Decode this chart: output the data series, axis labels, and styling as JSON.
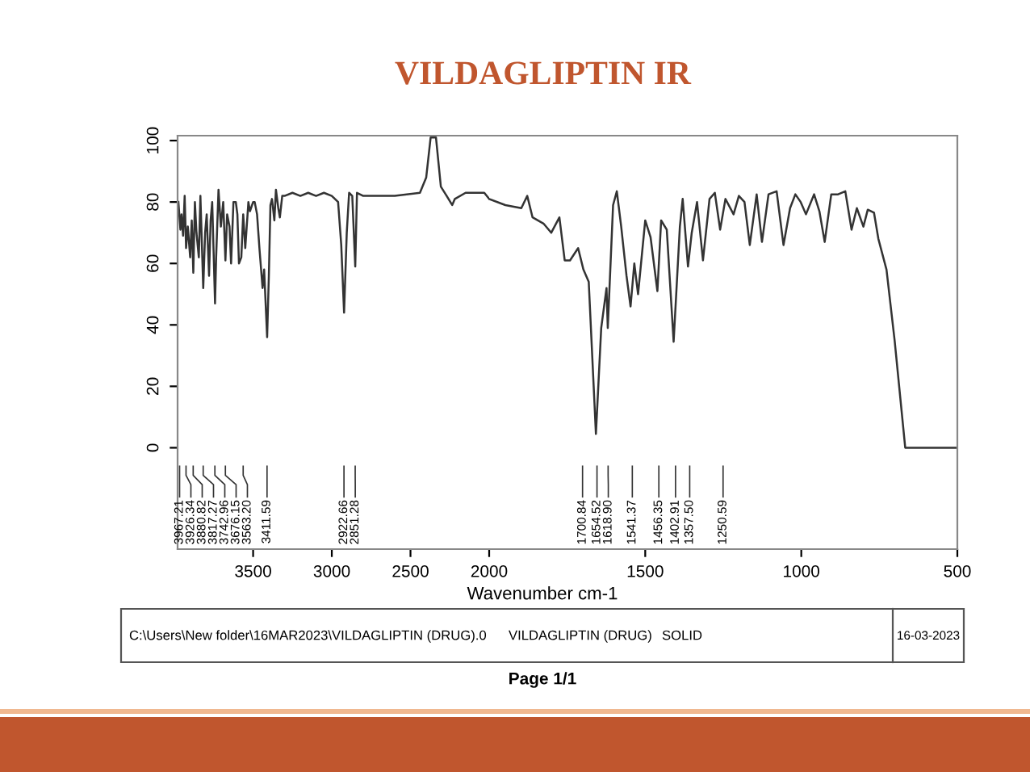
{
  "chart_data": [
    {
      "type": "line",
      "title": "VILDAGLIPTIN IR",
      "x": [
        3975,
        3962,
        3955,
        3945,
        3935,
        3926,
        3915,
        3900,
        3890,
        3880,
        3870,
        3860,
        3845,
        3835,
        3817,
        3805,
        3795,
        3780,
        3770,
        3760,
        3742,
        3735,
        3720,
        3705,
        3690,
        3676,
        3665,
        3650,
        3640,
        3625,
        3610,
        3600,
        3590,
        3575,
        3563,
        3550,
        3530,
        3520,
        3500,
        3490,
        3475,
        3460,
        3440,
        3430,
        3411,
        3400,
        3390,
        3380,
        3365,
        3355,
        3340,
        3330,
        3315,
        3300,
        3250,
        3200,
        3150,
        3100,
        3050,
        3000,
        2960,
        2940,
        2922,
        2905,
        2890,
        2870,
        2851,
        2840,
        2800,
        2700,
        2600,
        2440,
        2400,
        2372,
        2338,
        2307,
        2270,
        2235,
        2218,
        2150,
        2031,
        2000
      ],
      "series": [
        {
          "color": "#333333",
          "values": [
            80,
            71,
            76,
            69,
            82,
            65,
            72,
            62,
            74,
            57,
            80,
            70,
            62,
            82,
            52,
            70,
            76,
            56,
            74,
            80,
            47,
            62,
            84,
            72,
            80,
            61,
            76,
            72,
            60,
            80,
            80,
            76,
            60,
            62,
            76,
            65,
            80,
            77,
            80,
            80,
            76,
            65,
            52,
            58,
            36,
            56,
            79,
            81,
            74,
            84,
            78,
            75,
            82,
            82,
            83,
            82,
            83,
            82,
            83,
            82,
            80,
            66,
            44,
            70,
            83,
            82,
            59,
            83,
            82,
            82,
            82,
            83,
            88,
            101,
            101,
            85,
            82,
            79,
            81,
            83,
            83,
            81
          ]
        }
      ],
      "xlim": [
        3980,
        2000
      ],
      "xticks": [
        3500,
        3000,
        2500,
        2000
      ],
      "ylim": [
        -33,
        101.6
      ],
      "yticks": [
        0,
        20,
        40,
        60,
        80,
        100
      ],
      "annotations": [
        {
          "text": "3967.21",
          "x": 3967.21
        },
        {
          "text": "3926.34",
          "x": 3926.34
        },
        {
          "text": "3880.82",
          "x": 3880.82
        },
        {
          "text": "3817.27",
          "x": 3817.27
        },
        {
          "text": "3742.96",
          "x": 3742.96
        },
        {
          "text": "3676.15",
          "x": 3676.15
        },
        {
          "text": "3563.20",
          "x": 3563.2
        },
        {
          "text": "3411.59",
          "x": 3411.59
        },
        {
          "text": "2922.66",
          "x": 2922.66
        },
        {
          "text": "2851.28",
          "x": 2851.28
        }
      ]
    },
    {
      "type": "line",
      "xlabel": "Wavenumber cm-1",
      "x": [
        2000,
        1948,
        1897,
        1878,
        1861,
        1826,
        1801,
        1775,
        1758,
        1741,
        1715,
        1698,
        1681,
        1658,
        1641,
        1624,
        1620,
        1603,
        1591,
        1577,
        1560,
        1547,
        1535,
        1523,
        1500,
        1483,
        1461,
        1449,
        1431,
        1409,
        1389,
        1380,
        1363,
        1351,
        1334,
        1315,
        1294,
        1277,
        1260,
        1243,
        1217,
        1200,
        1182,
        1165,
        1143,
        1126,
        1105,
        1079,
        1057,
        1036,
        1019,
        1002,
        985,
        959,
        942,
        925,
        904,
        882,
        859,
        839,
        822,
        801,
        787,
        767,
        753,
        727,
        701,
        667,
        500
      ],
      "series": [
        {
          "color": "#333333",
          "values": [
            81,
            79,
            78,
            82,
            75,
            73,
            70,
            75,
            61,
            61,
            65,
            58,
            54,
            4.5,
            39,
            52,
            39,
            79,
            83.5,
            72,
            56,
            46,
            60,
            50,
            74,
            68.6,
            51,
            74,
            71,
            34.5,
            72,
            81,
            59,
            70,
            80,
            61,
            81,
            83,
            71,
            81,
            76,
            82,
            80,
            66,
            82.5,
            67,
            82.5,
            83.5,
            66,
            78,
            82.5,
            80,
            76,
            82.5,
            77,
            67,
            82.5,
            82.5,
            83.5,
            71,
            78,
            72,
            77.5,
            76.5,
            68,
            58,
            35,
            0,
            0
          ]
        }
      ],
      "xlim": [
        2000,
        500
      ],
      "xticks": [
        1500,
        1000,
        500
      ],
      "ylim": [
        -33,
        101.6
      ],
      "tick_labels": "x",
      "annotations": [
        {
          "text": "1700.84",
          "x": 1700.84
        },
        {
          "text": "1654.52",
          "x": 1654.52
        },
        {
          "text": "1618.90",
          "x": 1618.9
        },
        {
          "text": "1541.37",
          "x": 1541.37
        },
        {
          "text": "1456.35",
          "x": 1456.35
        },
        {
          "text": "1402.91",
          "x": 1402.91
        },
        {
          "text": "1357.50",
          "x": 1357.5
        },
        {
          "text": "1250.59",
          "x": 1250.59
        },
        "C:\\Users\\New folder\\16MAR2023\\VILDAGLIPTIN (DRUG).0",
        "VILDAGLIPTIN (DRUG)",
        "SOLID",
        "16-03-2023",
        "Page 1/1"
      ]
    }
  ]
}
